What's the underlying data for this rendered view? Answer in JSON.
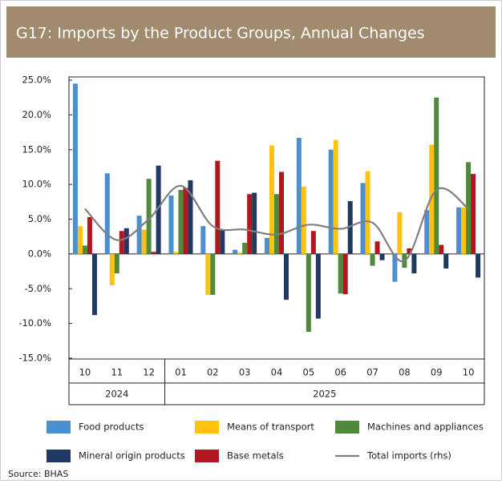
{
  "chart_data": {
    "type": "bar",
    "title": "G17: Imports by the Product Groups, Annual Changes",
    "categories": [
      "10",
      "11",
      "12",
      "01",
      "02",
      "03",
      "04",
      "05",
      "06",
      "07",
      "08",
      "09",
      "10"
    ],
    "group_labels": [
      "2024",
      "2025"
    ],
    "series": [
      {
        "name": "Food products",
        "color": "#4a8fd0",
        "values": [
          24.5,
          11.6,
          5.5,
          8.4,
          4.0,
          0.6,
          2.3,
          16.7,
          15.0,
          10.2,
          -4.0,
          6.3,
          6.7
        ]
      },
      {
        "name": "Means of transport",
        "color": "#ffc20e",
        "values": [
          4.0,
          -4.5,
          3.5,
          0.3,
          -5.9,
          0.2,
          15.6,
          9.7,
          16.4,
          11.9,
          6.0,
          15.7,
          6.7
        ]
      },
      {
        "name": "Machines and appliances",
        "color": "#4e8a3a",
        "values": [
          1.2,
          -2.8,
          10.8,
          9.2,
          -5.9,
          1.6,
          8.6,
          -11.2,
          -5.7,
          -1.7,
          -2.0,
          22.5,
          13.2
        ]
      },
      {
        "name": "Mineral origin products",
        "color": "#1f3864",
        "values": [
          -8.8,
          3.7,
          12.7,
          10.6,
          3.5,
          8.8,
          -6.6,
          -9.3,
          7.6,
          -0.9,
          -2.8,
          -2.1,
          -3.4
        ]
      },
      {
        "name": "Base metals",
        "color": "#b0171f",
        "values": [
          5.3,
          3.3,
          0.3,
          9.5,
          13.4,
          8.6,
          11.8,
          3.3,
          -5.8,
          1.8,
          0.8,
          1.3,
          11.5
        ]
      },
      {
        "name": "Total imports (rhs)",
        "color": "#7f7f7f",
        "type": "line",
        "values": [
          6.5,
          2.0,
          5.0,
          9.8,
          4.0,
          3.5,
          2.8,
          4.2,
          3.6,
          4.5,
          -1.0,
          9.2,
          6.5
        ]
      }
    ],
    "ylim": [
      -15,
      25
    ],
    "yticks": [
      {
        "value": -15,
        "label": "-15.0%"
      },
      {
        "value": -10,
        "label": "-10.0%"
      },
      {
        "value": -5,
        "label": "-5.0%"
      },
      {
        "value": 0,
        "label": "0.0%"
      },
      {
        "value": 5,
        "label": "5.0%"
      },
      {
        "value": 10,
        "label": "10.0%"
      },
      {
        "value": 15,
        "label": "15.0%"
      },
      {
        "value": 20,
        "label": "20.0%"
      },
      {
        "value": 25,
        "label": "25.0%"
      }
    ],
    "grid": false,
    "source": "Source: BHAS"
  }
}
